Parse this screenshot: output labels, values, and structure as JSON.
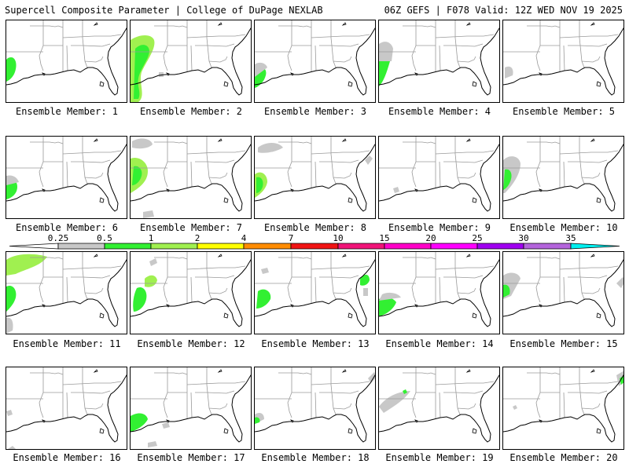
{
  "header": {
    "title_left": "Supercell Composite Parameter | College of DuPage NEXLAB",
    "title_right": "06Z GEFS | F078 Valid: 12Z WED NOV 19 2025"
  },
  "legend": {
    "labels": [
      "0.25",
      "0.5",
      "1",
      "2",
      "4",
      "7",
      "10",
      "15",
      "20",
      "25",
      "30",
      "35"
    ],
    "colors": [
      "#ffffff",
      "#c8c8c8",
      "#32f032",
      "#a0f050",
      "#ffff00",
      "#ff8c00",
      "#f01414",
      "#f01478",
      "#ff00c8",
      "#ff00ff",
      "#a000f0",
      "#b464dc",
      "#00f0f0"
    ]
  },
  "map_colors": {
    "land": "#ffffff",
    "boundary": "#000000",
    "state_lines": "#9a9a9a",
    "scp_0_25": "#c8c8c8",
    "scp_0_5": "#32f032",
    "scp_1": "#a0f050"
  },
  "members": [
    {
      "label": "Ensemble Member: 1"
    },
    {
      "label": "Ensemble Member: 2"
    },
    {
      "label": "Ensemble Member: 3"
    },
    {
      "label": "Ensemble Member: 4"
    },
    {
      "label": "Ensemble Member: 5"
    },
    {
      "label": "Ensemble Member: 6"
    },
    {
      "label": "Ensemble Member: 7"
    },
    {
      "label": "Ensemble Member: 8"
    },
    {
      "label": "Ensemble Member: 9"
    },
    {
      "label": "Ensemble Member: 10"
    },
    {
      "label": "Ensemble Member: 11"
    },
    {
      "label": "Ensemble Member: 12"
    },
    {
      "label": "Ensemble Member: 13"
    },
    {
      "label": "Ensemble Member: 14"
    },
    {
      "label": "Ensemble Member: 15"
    },
    {
      "label": "Ensemble Member: 16"
    },
    {
      "label": "Ensemble Member: 17"
    },
    {
      "label": "Ensemble Member: 18"
    },
    {
      "label": "Ensemble Member: 19"
    },
    {
      "label": "Ensemble Member: 20"
    }
  ]
}
